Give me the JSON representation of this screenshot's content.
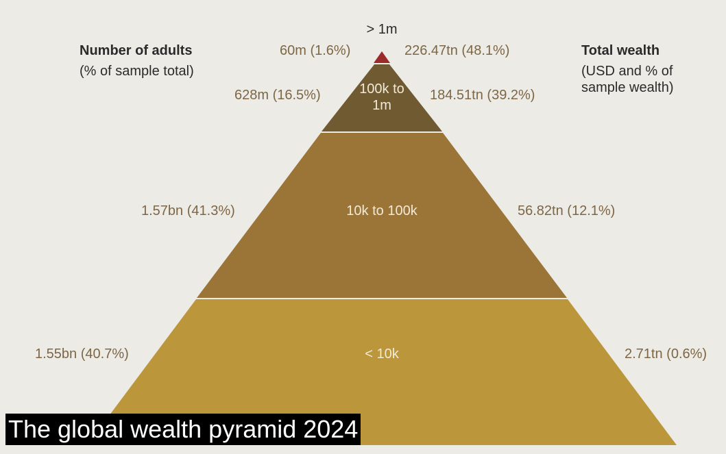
{
  "header": {
    "left_title": "Number of adults",
    "left_subtitle": "(% of sample total)",
    "right_title": "Total wealth",
    "right_subtitle": "(USD and % of sample wealth)"
  },
  "tiers": [
    {
      "label": "> 1m",
      "adults": "60m (1.6%)",
      "wealth": "226.47tn (48.1%)"
    },
    {
      "label": "100k to 1m",
      "adults": "628m (16.5%)",
      "wealth": "184.51tn (39.2%)"
    },
    {
      "label": "10k to 100k",
      "adults": "1.57bn (41.3%)",
      "wealth": "56.82tn (12.1%)"
    },
    {
      "label": "< 10k",
      "adults": "1.55bn (40.7%)",
      "wealth": "2.71tn (0.6%)"
    }
  ],
  "caption": "The global wealth pyramid 2024"
}
